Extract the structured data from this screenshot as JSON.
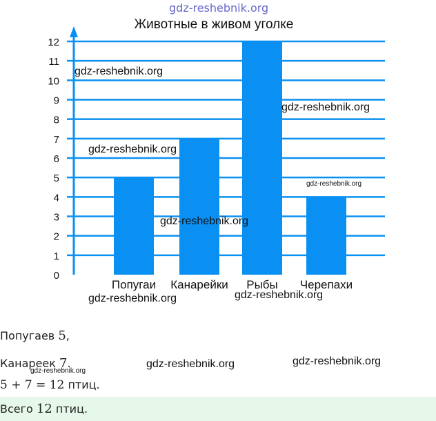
{
  "chart_data": {
    "type": "bar",
    "title": "Животные в живом уголке",
    "categories": [
      "Попугаи",
      "Канарейки",
      "Рыбы",
      "Черепахи"
    ],
    "values": [
      5,
      7,
      12,
      4
    ],
    "ylim": [
      0,
      12
    ],
    "yticks": [
      "0",
      "1",
      "2",
      "3",
      "4",
      "5",
      "6",
      "7",
      "8",
      "9",
      "10",
      "11",
      "12"
    ],
    "grid": true,
    "bar_color": "#0a90f2",
    "grid_color": "#0a90f2"
  },
  "solution": {
    "line1_text": "Попугаев ",
    "line1_num": "5",
    "line1_end": ",",
    "line2_text": "Канареек ",
    "line2_num": "7",
    "line2_end": ".",
    "line3_expr": "5 + 7 = 12",
    "line3_end": " птиц.",
    "answer_text": "Всего ",
    "answer_num": "12",
    "answer_end": " птиц."
  },
  "watermarks": {
    "top": "gdz-reshebnik.org",
    "text": "gdz-reshebnik.org"
  }
}
